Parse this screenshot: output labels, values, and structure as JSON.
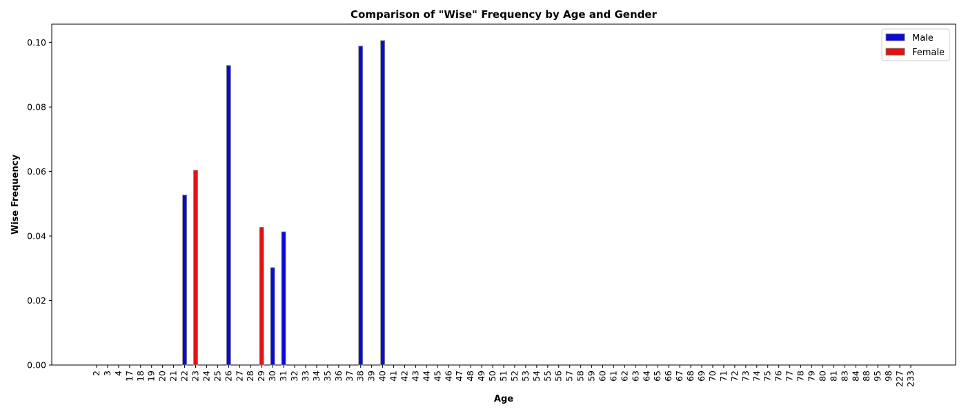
{
  "chart_data": {
    "type": "bar",
    "title": "Comparison of \"Wise\" Frequency by Age and Gender",
    "xlabel": "Age",
    "ylabel": "Wise Frequency",
    "ylim": [
      0,
      0.1057
    ],
    "yticks": [
      "0.00",
      "0.02",
      "0.04",
      "0.06",
      "0.08",
      "0.10"
    ],
    "categories": [
      "2",
      "3",
      "4",
      "17",
      "18",
      "19",
      "20",
      "21",
      "22",
      "23",
      "24",
      "25",
      "26",
      "27",
      "28",
      "29",
      "30",
      "31",
      "32",
      "33",
      "34",
      "35",
      "36",
      "37",
      "38",
      "39",
      "40",
      "41",
      "42",
      "43",
      "44",
      "45",
      "46",
      "47",
      "48",
      "49",
      "50",
      "51",
      "52",
      "53",
      "54",
      "55",
      "56",
      "57",
      "58",
      "59",
      "60",
      "61",
      "62",
      "63",
      "64",
      "65",
      "66",
      "67",
      "68",
      "69",
      "70",
      "71",
      "72",
      "73",
      "74",
      "75",
      "76",
      "77",
      "78",
      "79",
      "80",
      "81",
      "83",
      "84",
      "88",
      "95",
      "98",
      "227",
      "233"
    ],
    "series": [
      {
        "name": "Male",
        "color": "#0a0ad6",
        "points": [
          {
            "x": "22",
            "y": 0.0527
          },
          {
            "x": "26",
            "y": 0.0929
          },
          {
            "x": "30",
            "y": 0.0302
          },
          {
            "x": "31",
            "y": 0.0413
          },
          {
            "x": "38",
            "y": 0.0989
          },
          {
            "x": "40",
            "y": 0.1006
          }
        ]
      },
      {
        "name": "Female",
        "color": "#e01414",
        "points": [
          {
            "x": "23",
            "y": 0.0604
          },
          {
            "x": "29",
            "y": 0.0427
          }
        ]
      }
    ],
    "legend_position": "top-right",
    "grid": false
  }
}
